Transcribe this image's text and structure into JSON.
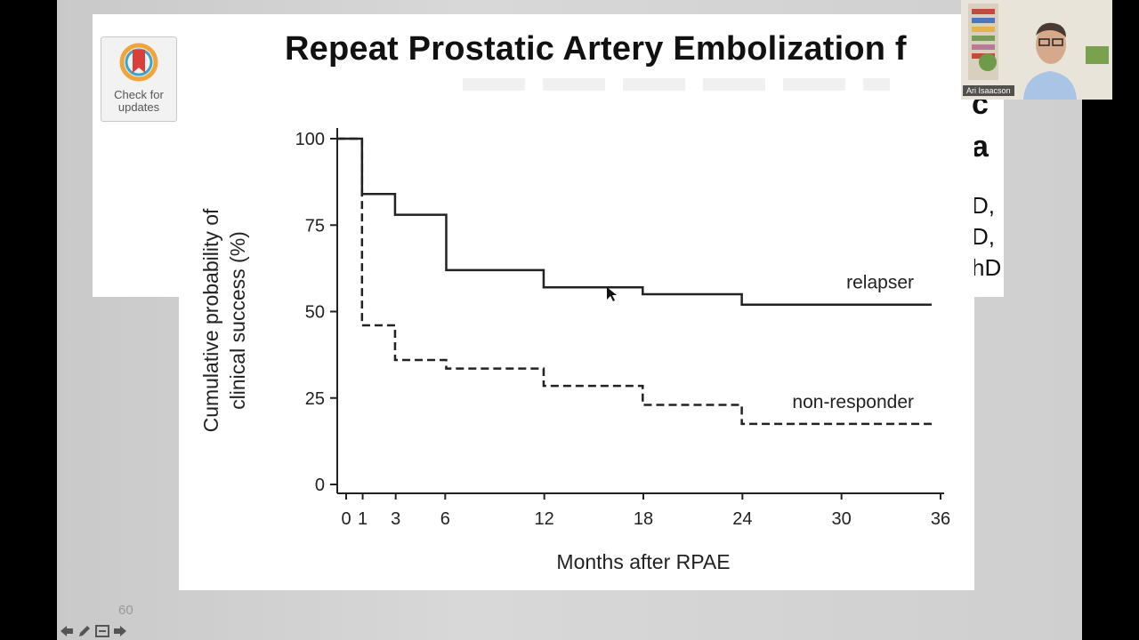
{
  "slide": {
    "title": "Repeat Prostatic Artery Embolization f",
    "fragments": [
      "c",
      "a",
      "D,",
      "D,",
      "hD"
    ],
    "number": "60"
  },
  "badge": {
    "line1": "Check for",
    "line2": "updates",
    "colors": {
      "ring": "#f0a43a",
      "ring_inner": "#3aa6c9",
      "bookmark": "#d8413a"
    }
  },
  "webcam": {
    "name": "Ari Isaacson"
  },
  "nav": {
    "icons": [
      "back-arrow-icon",
      "pen-icon",
      "slides-menu-icon",
      "forward-arrow-icon"
    ]
  },
  "chart_data": {
    "type": "line",
    "step": true,
    "title": "",
    "xlabel": "Months after RPAE",
    "ylabel_lines": [
      "Cumulative probability of",
      "clinical success (%)"
    ],
    "x_ticks": [
      0,
      1,
      3,
      6,
      12,
      18,
      24,
      30,
      36
    ],
    "y_ticks": [
      0,
      25,
      50,
      75,
      100
    ],
    "xlim": [
      0,
      36
    ],
    "ylim": [
      0,
      100
    ],
    "grid": false,
    "series": [
      {
        "name": "relapser",
        "style": "solid",
        "color": "#222222",
        "x": [
          0,
          1.5,
          3.5,
          6.6,
          12.5,
          18.5,
          24.5,
          36
        ],
        "y": [
          100,
          84,
          78,
          62,
          57,
          55,
          52,
          52
        ]
      },
      {
        "name": "non-responder",
        "style": "dashed",
        "color": "#222222",
        "x": [
          0,
          1.5,
          3.5,
          6.6,
          12.5,
          18.5,
          24.5,
          36
        ],
        "y": [
          100,
          46,
          36,
          33.5,
          28.5,
          23,
          17.5,
          17.5
        ]
      }
    ]
  }
}
